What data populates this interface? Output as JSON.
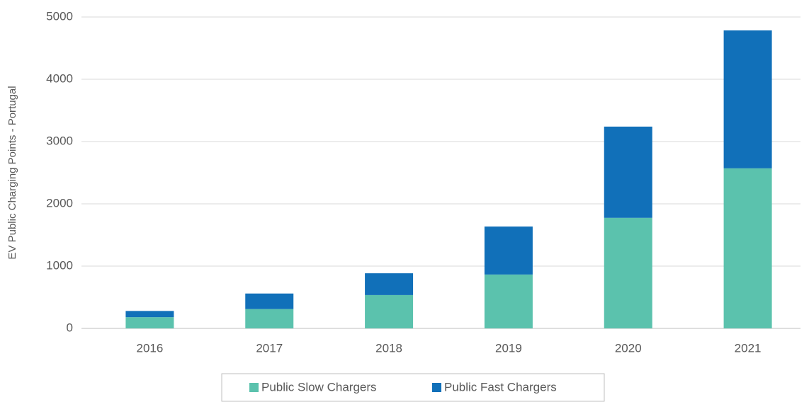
{
  "chart_data": {
    "type": "bar",
    "stacked": true,
    "y_label": "EV Public Charging Points - Portugal",
    "categories": [
      "2016",
      "2017",
      "2018",
      "2019",
      "2020",
      "2021"
    ],
    "series": [
      {
        "name": "Public Slow Chargers",
        "color": "#5bc2ad",
        "values": [
          180,
          310,
          535,
          865,
          1775,
          2570
        ]
      },
      {
        "name": "Public Fast Chargers",
        "color": "#1170b9",
        "values": [
          100,
          250,
          350,
          770,
          1465,
          2215
        ]
      }
    ],
    "ylim": [
      0,
      5000
    ],
    "yticks": [
      0,
      1000,
      2000,
      3000,
      4000,
      5000
    ],
    "grid": true,
    "legend": "bottom"
  }
}
